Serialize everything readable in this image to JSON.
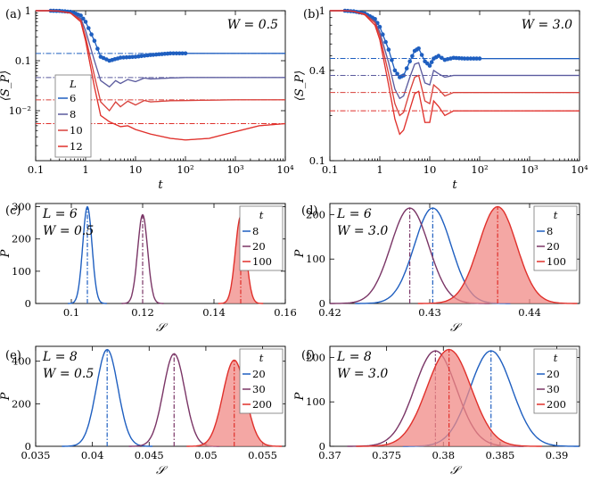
{
  "figure": {
    "colors": {
      "blue": "#1f5fc0",
      "purple": "#5b5b9e",
      "plum": "#7a3566",
      "red": "#e0302b",
      "redfill": "#f08a86"
    }
  },
  "chart_data": [
    {
      "id": "a",
      "panel_label": "(a)",
      "type": "line",
      "annotation": "W = 0.5",
      "xlabel": "t",
      "ylabel": "⟨S_P⟩",
      "xscale": "log",
      "yscale": "log",
      "xlim": [
        0.1,
        10000
      ],
      "ylim": [
        0.001,
        1
      ],
      "xticks": [
        0.1,
        1,
        10,
        100,
        1000,
        10000
      ],
      "xtick_labels": [
        "0.1",
        "1",
        "10",
        "10²",
        "10³",
        "10⁴"
      ],
      "yticks": [
        1,
        0.1,
        0.01
      ],
      "ytick_labels": [
        "1",
        "0.1",
        "10⁻²"
      ],
      "legend_title": "L",
      "series": [
        {
          "name": "6",
          "color": "#1f5fc0",
          "dotted": true,
          "steady": 0.14,
          "x": [
            0.1,
            0.2,
            0.3,
            0.5,
            0.8,
            1,
            1.5,
            2,
            3,
            5,
            10,
            20,
            50,
            100,
            1000,
            10000
          ],
          "y": [
            1,
            1,
            0.99,
            0.95,
            0.8,
            0.6,
            0.25,
            0.12,
            0.1,
            0.115,
            0.12,
            0.13,
            0.14,
            0.14,
            0.14,
            0.14
          ]
        },
        {
          "name": "8",
          "color": "#5b5b9e",
          "steady": 0.046,
          "x": [
            0.1,
            0.2,
            0.3,
            0.5,
            0.8,
            1,
            1.5,
            2,
            3,
            4,
            5,
            7,
            10,
            15,
            20,
            50,
            100,
            1000,
            10000
          ],
          "y": [
            1,
            1,
            0.98,
            0.9,
            0.7,
            0.4,
            0.1,
            0.04,
            0.03,
            0.04,
            0.035,
            0.042,
            0.038,
            0.045,
            0.043,
            0.045,
            0.046,
            0.046,
            0.046
          ]
        },
        {
          "name": "10",
          "color": "#d8403a",
          "steady": 0.0165,
          "x": [
            0.1,
            0.2,
            0.3,
            0.5,
            0.8,
            1,
            1.5,
            2,
            3,
            4,
            5,
            7,
            10,
            15,
            20,
            50,
            100,
            1000,
            10000
          ],
          "y": [
            1,
            1,
            0.98,
            0.9,
            0.65,
            0.3,
            0.05,
            0.015,
            0.01,
            0.015,
            0.012,
            0.0155,
            0.013,
            0.016,
            0.015,
            0.0158,
            0.016,
            0.0165,
            0.0165
          ]
        },
        {
          "name": "12",
          "color": "#e0302b",
          "steady": 0.0055,
          "x": [
            0.1,
            0.2,
            0.3,
            0.5,
            0.8,
            1,
            1.5,
            2,
            3,
            5,
            7,
            10,
            20,
            50,
            100,
            300,
            1000,
            3000,
            10000
          ],
          "y": [
            1,
            1,
            0.98,
            0.9,
            0.6,
            0.25,
            0.03,
            0.008,
            0.006,
            0.0048,
            0.005,
            0.0042,
            0.0034,
            0.0028,
            0.0026,
            0.0028,
            0.0038,
            0.005,
            0.0055
          ]
        }
      ]
    },
    {
      "id": "b",
      "panel_label": "(b)",
      "type": "line",
      "annotation": "W = 3.0",
      "xlabel": "t",
      "ylabel": "⟨S_P⟩",
      "xscale": "log",
      "yscale": "log",
      "xlim": [
        0.1,
        10000
      ],
      "ylim": [
        0.1,
        1
      ],
      "xticks": [
        0.1,
        1,
        10,
        100,
        1000,
        10000
      ],
      "xtick_labels": [
        "0.1",
        "1",
        "10",
        "10²",
        "10³",
        "10⁴"
      ],
      "yticks": [
        1,
        0.4,
        0.1
      ],
      "ytick_labels": [
        "1",
        "0.4",
        "0.1"
      ],
      "series": [
        {
          "name": "6",
          "color": "#1f5fc0",
          "dotted": true,
          "steady": 0.48,
          "x": [
            0.1,
            0.2,
            0.3,
            0.5,
            0.8,
            1,
            1.5,
            2,
            2.5,
            3,
            4,
            5,
            6,
            8,
            10,
            12,
            15,
            20,
            30,
            50,
            100,
            1000,
            10000
          ],
          "y": [
            1,
            1,
            0.99,
            0.96,
            0.88,
            0.78,
            0.55,
            0.4,
            0.36,
            0.37,
            0.46,
            0.54,
            0.56,
            0.46,
            0.43,
            0.48,
            0.5,
            0.47,
            0.485,
            0.48,
            0.48,
            0.48,
            0.48
          ]
        },
        {
          "name": "8",
          "color": "#5b5b9e",
          "steady": 0.37,
          "x": [
            0.1,
            0.2,
            0.3,
            0.5,
            0.8,
            1,
            1.5,
            2,
            2.5,
            3,
            4,
            5,
            6,
            8,
            10,
            12,
            15,
            20,
            30,
            50,
            100,
            1000,
            10000
          ],
          "y": [
            1,
            1,
            0.99,
            0.95,
            0.85,
            0.72,
            0.45,
            0.3,
            0.26,
            0.27,
            0.36,
            0.44,
            0.45,
            0.33,
            0.32,
            0.4,
            0.38,
            0.36,
            0.37,
            0.37,
            0.37,
            0.37,
            0.37
          ]
        },
        {
          "name": "10",
          "color": "#d8403a",
          "steady": 0.285,
          "x": [
            0.1,
            0.2,
            0.3,
            0.5,
            0.8,
            1,
            1.5,
            2,
            2.5,
            3,
            4,
            5,
            6,
            8,
            10,
            12,
            15,
            20,
            30,
            50,
            100,
            1000,
            10000
          ],
          "y": [
            1,
            1,
            0.99,
            0.95,
            0.83,
            0.68,
            0.38,
            0.24,
            0.2,
            0.21,
            0.29,
            0.36,
            0.37,
            0.25,
            0.24,
            0.32,
            0.3,
            0.27,
            0.285,
            0.285,
            0.285,
            0.285,
            0.285
          ]
        },
        {
          "name": "12",
          "color": "#e0302b",
          "steady": 0.215,
          "x": [
            0.1,
            0.2,
            0.3,
            0.5,
            0.8,
            1,
            1.5,
            2,
            2.5,
            3,
            4,
            5,
            6,
            8,
            10,
            12,
            15,
            20,
            30,
            50,
            100,
            1000,
            10000
          ],
          "y": [
            1,
            1,
            0.99,
            0.94,
            0.8,
            0.64,
            0.32,
            0.19,
            0.15,
            0.16,
            0.22,
            0.28,
            0.29,
            0.18,
            0.18,
            0.25,
            0.23,
            0.2,
            0.215,
            0.215,
            0.215,
            0.215,
            0.215
          ]
        }
      ]
    },
    {
      "id": "c",
      "panel_label": "(c)",
      "type": "line",
      "annotations": [
        "L = 6",
        "W = 0.5"
      ],
      "xlabel": "𝒮",
      "ylabel": "P",
      "xlim": [
        0.09,
        0.16
      ],
      "ylim": [
        0,
        310
      ],
      "xticks": [
        0.1,
        0.12,
        0.14,
        0.16
      ],
      "xtick_labels": [
        "0.1",
        "0.12",
        "0.14",
        "0.16"
      ],
      "yticks": [
        0,
        100,
        200,
        300
      ],
      "ytick_labels": [
        "0",
        "100",
        "200",
        "300"
      ],
      "legend_title": "t",
      "series": [
        {
          "name": "8",
          "color": "#1f5fc0",
          "mean": 0.1045,
          "sd": 0.0013,
          "peak": 300,
          "fill": false
        },
        {
          "name": "20",
          "color": "#7a3566",
          "mean": 0.12,
          "sd": 0.0014,
          "peak": 275,
          "fill": false
        },
        {
          "name": "100",
          "color": "#e0302b",
          "mean": 0.1475,
          "sd": 0.0015,
          "peak": 270,
          "fill": true
        }
      ]
    },
    {
      "id": "d",
      "panel_label": "(d)",
      "type": "line",
      "annotations": [
        "L = 6",
        "W = 3.0"
      ],
      "xlabel": "𝒮",
      "ylabel": "P",
      "xlim": [
        0.42,
        0.445
      ],
      "ylim": [
        0,
        225
      ],
      "xticks": [
        0.42,
        0.43,
        0.44
      ],
      "xtick_labels": [
        "0.42",
        "0.43",
        "0.44"
      ],
      "yticks": [
        0,
        100,
        200
      ],
      "ytick_labels": [
        "0",
        "100",
        "200"
      ],
      "legend_title": "t",
      "series": [
        {
          "name": "8",
          "color": "#1f5fc0",
          "mean": 0.4303,
          "sd": 0.00185,
          "peak": 215,
          "fill": false
        },
        {
          "name": "20",
          "color": "#7a3566",
          "mean": 0.428,
          "sd": 0.0019,
          "peak": 215,
          "fill": false
        },
        {
          "name": "100",
          "color": "#e0302b",
          "mean": 0.4368,
          "sd": 0.0019,
          "peak": 218,
          "fill": true
        }
      ]
    },
    {
      "id": "e",
      "panel_label": "(e)",
      "type": "line",
      "annotations": [
        "L = 8",
        "W = 0.5"
      ],
      "xlabel": "𝒮",
      "ylabel": "P",
      "xlim": [
        0.035,
        0.057
      ],
      "ylim": [
        0,
        470
      ],
      "xticks": [
        0.035,
        0.04,
        0.045,
        0.05,
        0.055
      ],
      "xtick_labels": [
        "0.035",
        "0.04",
        "0.045",
        "0.05",
        "0.055"
      ],
      "yticks": [
        0,
        200,
        400
      ],
      "ytick_labels": [
        "0",
        "200",
        "400"
      ],
      "legend_title": "t",
      "series": [
        {
          "name": "20",
          "color": "#1f5fc0",
          "mean": 0.0413,
          "sd": 0.00095,
          "peak": 455,
          "fill": false
        },
        {
          "name": "30",
          "color": "#7a3566",
          "mean": 0.0472,
          "sd": 0.00095,
          "peak": 435,
          "fill": false
        },
        {
          "name": "200",
          "color": "#e0302b",
          "mean": 0.0525,
          "sd": 0.001,
          "peak": 405,
          "fill": true
        }
      ]
    },
    {
      "id": "f",
      "panel_label": "(f)",
      "type": "line",
      "annotations": [
        "L = 8",
        "W = 3.0"
      ],
      "xlabel": "𝒮",
      "ylabel": "P",
      "xlim": [
        0.37,
        0.392
      ],
      "ylim": [
        0,
        225
      ],
      "xticks": [
        0.37,
        0.375,
        0.38,
        0.385,
        0.39
      ],
      "xtick_labels": [
        "0.37",
        "0.375",
        "0.38",
        "0.385",
        "0.39"
      ],
      "yticks": [
        0,
        100,
        200
      ],
      "ytick_labels": [
        "0",
        "100",
        "200"
      ],
      "legend_title": "t",
      "series": [
        {
          "name": "20",
          "color": "#1f5fc0",
          "mean": 0.3842,
          "sd": 0.00185,
          "peak": 215,
          "fill": false
        },
        {
          "name": "30",
          "color": "#7a3566",
          "mean": 0.3793,
          "sd": 0.00185,
          "peak": 215,
          "fill": false
        },
        {
          "name": "200",
          "color": "#e0302b",
          "mean": 0.3805,
          "sd": 0.00195,
          "peak": 218,
          "fill": true
        }
      ]
    }
  ]
}
